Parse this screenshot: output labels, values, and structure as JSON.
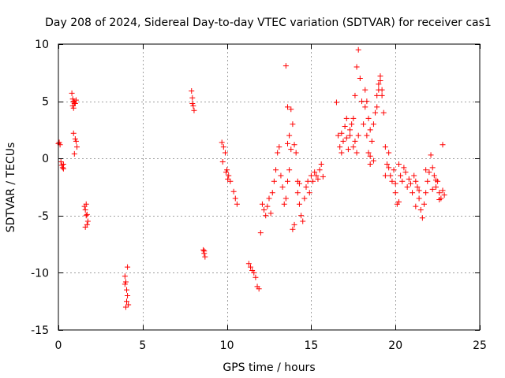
{
  "chart_data": {
    "type": "scatter",
    "title": "Day 208 of 2024, Sidereal Day-to-day VTEC variation (SDTVAR) for receiver cas1",
    "xlabel": "GPS time / hours",
    "ylabel": "SDTVAR / TECUs",
    "xlim": [
      0,
      25
    ],
    "ylim": [
      -15,
      10
    ],
    "xticks": [
      0,
      5,
      10,
      15,
      20,
      25
    ],
    "yticks": [
      -15,
      -10,
      -5,
      0,
      5,
      10
    ],
    "xtick_labels": [
      "0",
      "5",
      "10",
      "15",
      "20",
      "25"
    ],
    "ytick_labels": [
      "-15",
      "-10",
      "-5",
      "0",
      "5",
      "10"
    ],
    "grid": true,
    "marker": "+",
    "marker_color": "#ff0000",
    "series": [
      {
        "name": "SDTVAR",
        "x": [
          0.0,
          0.05,
          0.1,
          0.15,
          0.2,
          0.25,
          0.3,
          0.3,
          0.8,
          0.85,
          0.9,
          0.95,
          1.0,
          1.05,
          0.85,
          0.9,
          0.95,
          0.9,
          1.0,
          1.05,
          1.1,
          0.95,
          1.55,
          1.6,
          1.65,
          1.7,
          1.75,
          1.6,
          1.7,
          1.65,
          3.95,
          4.0,
          4.05,
          4.1,
          4.15,
          4.0,
          4.1,
          3.95,
          4.05,
          7.9,
          7.95,
          8.0,
          8.05,
          7.95,
          8.6,
          8.65,
          8.7,
          8.65,
          9.7,
          9.8,
          9.9,
          10.0,
          10.1,
          10.2,
          9.75,
          10.05,
          9.95,
          10.4,
          10.5,
          10.6,
          11.3,
          11.4,
          11.5,
          11.6,
          11.7,
          11.8,
          11.9,
          12.0,
          12.1,
          12.2,
          12.3,
          12.4,
          12.5,
          12.6,
          12.7,
          12.8,
          12.9,
          13.0,
          13.1,
          13.2,
          13.3,
          13.4,
          13.5,
          13.6,
          13.7,
          13.8,
          13.9,
          14.0,
          14.1,
          14.2,
          14.3,
          14.4,
          14.5,
          14.6,
          14.7,
          14.8,
          14.9,
          15.0,
          15.1,
          15.2,
          15.3,
          15.4,
          15.5,
          15.6,
          15.7,
          13.5,
          13.6,
          13.7,
          13.8,
          13.9,
          14.0,
          14.2,
          14.3,
          13.6,
          16.5,
          16.6,
          16.7,
          16.8,
          16.9,
          17.0,
          17.1,
          17.2,
          17.3,
          17.4,
          17.5,
          17.6,
          17.7,
          17.8,
          17.9,
          18.0,
          18.1,
          18.2,
          18.3,
          18.4,
          18.5,
          18.6,
          18.7,
          18.8,
          18.9,
          19.0,
          19.1,
          19.2,
          19.3,
          19.4,
          19.5,
          19.6,
          19.7,
          19.8,
          19.9,
          20.0,
          20.1,
          20.2,
          20.3,
          20.4,
          20.5,
          20.6,
          20.7,
          20.8,
          20.9,
          21.0,
          21.1,
          21.2,
          21.3,
          21.4,
          21.5,
          21.6,
          21.7,
          21.8,
          21.9,
          22.0,
          22.1,
          22.2,
          22.3,
          22.4,
          22.5,
          22.6,
          22.7,
          22.8,
          22.9,
          17.5,
          17.6,
          17.7,
          17.8,
          18.2,
          18.3,
          18.4,
          18.5,
          18.9,
          19.0,
          19.1,
          19.2,
          18.5,
          18.7,
          19.4,
          19.6,
          20.0,
          20.2,
          21.2,
          21.4,
          21.8,
          22.2,
          22.4,
          22.6,
          22.8,
          17.1,
          17.3,
          16.8
        ],
        "y": [
          1.3,
          1.4,
          1.2,
          -0.3,
          -0.6,
          -0.8,
          -0.5,
          -0.9,
          5.7,
          5.2,
          5.0,
          4.9,
          4.8,
          5.1,
          4.6,
          4.4,
          4.8,
          2.2,
          1.7,
          1.5,
          1.0,
          0.4,
          -4.2,
          -4.5,
          -5.0,
          -4.9,
          -5.5,
          -6.0,
          -5.8,
          -4.0,
          -10.3,
          -10.8,
          -11.5,
          -12.0,
          -12.8,
          -13.0,
          -9.5,
          -11.0,
          -12.5,
          5.9,
          5.3,
          4.6,
          4.2,
          4.8,
          -8.0,
          -8.3,
          -8.6,
          -8.1,
          1.4,
          1.0,
          0.5,
          -1.0,
          -1.5,
          -2.0,
          -0.3,
          -1.8,
          -1.2,
          -2.9,
          -3.5,
          -4.0,
          -9.2,
          -9.5,
          -9.8,
          -10.0,
          -10.4,
          -11.2,
          -11.4,
          -6.5,
          -4.0,
          -4.5,
          -5.0,
          -4.2,
          -3.5,
          -4.8,
          -3.0,
          -2.0,
          -1.0,
          0.5,
          1.0,
          -1.5,
          -2.5,
          -4.0,
          -3.5,
          -2.0,
          -1.0,
          4.3,
          3.0,
          1.2,
          0.5,
          -2.0,
          -4.0,
          -5.0,
          -5.5,
          -3.5,
          -2.5,
          -2.0,
          -3.0,
          -1.5,
          -2.0,
          -1.2,
          -1.5,
          -1.8,
          -1.0,
          -0.5,
          -1.6,
          8.1,
          4.5,
          2.0,
          0.8,
          -6.2,
          -5.8,
          -3.0,
          -2.2,
          1.3,
          4.9,
          2.0,
          1.0,
          0.5,
          1.5,
          2.8,
          3.5,
          0.8,
          2.0,
          3.0,
          3.5,
          5.5,
          8.0,
          9.5,
          7.0,
          5.0,
          3.0,
          4.5,
          2.0,
          0.5,
          -0.5,
          1.5,
          3.0,
          4.0,
          5.5,
          6.5,
          7.2,
          6.0,
          4.0,
          1.0,
          -0.5,
          0.5,
          -1.5,
          -2.0,
          -1.0,
          -3.0,
          -4.0,
          -0.5,
          -1.5,
          -2.0,
          -0.8,
          -1.2,
          -2.5,
          -1.8,
          -2.2,
          -3.0,
          -1.5,
          -2.0,
          -2.5,
          -3.5,
          -4.5,
          -5.2,
          -4.0,
          -3.0,
          -2.0,
          -1.2,
          0.3,
          -0.8,
          -1.5,
          -2.5,
          -2.0,
          -3.0,
          -3.5,
          -2.8,
          -3.2,
          1.0,
          1.5,
          0.5,
          2.0,
          6.0,
          5.0,
          3.5,
          2.5,
          4.5,
          6.0,
          6.8,
          5.5,
          0.2,
          -0.2,
          -1.5,
          -0.8,
          -2.2,
          -3.8,
          -4.2,
          -2.8,
          -1.0,
          -2.7,
          -1.9,
          -3.6,
          1.2,
          1.8,
          2.5,
          2.2
        ]
      }
    ]
  }
}
